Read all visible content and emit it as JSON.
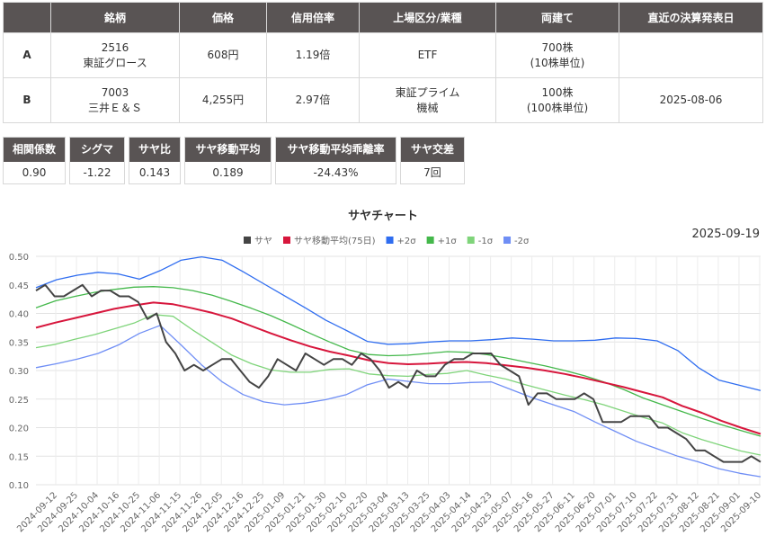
{
  "info_table": {
    "headers": [
      "",
      "銘柄",
      "価格",
      "信用倍率",
      "上場区分/業種",
      "両建て",
      "直近の決算発表日"
    ],
    "rows": [
      {
        "label": "A",
        "code": "2516",
        "name": "東証グロース",
        "price": "608円",
        "margin_ratio": "1.19倍",
        "market": "ETF",
        "sector": "",
        "lot": "700株",
        "lot_unit": "(10株単位)",
        "earnings_date": ""
      },
      {
        "label": "B",
        "code": "7003",
        "name": "三井Ｅ＆Ｓ",
        "price": "4,255円",
        "margin_ratio": "2.97倍",
        "market": "東証プライム",
        "sector": "機械",
        "lot": "100株",
        "lot_unit": "(100株単位)",
        "earnings_date": "2025-08-06"
      }
    ]
  },
  "stats": [
    {
      "label": "相関係数",
      "value": "0.90"
    },
    {
      "label": "シグマ",
      "value": "-1.22"
    },
    {
      "label": "サヤ比",
      "value": "0.143"
    },
    {
      "label": "サヤ移動平均",
      "value": "0.189"
    },
    {
      "label": "サヤ移動平均乖離率",
      "value": "-24.43%"
    },
    {
      "label": "サヤ交差",
      "value": "7回"
    }
  ],
  "chart_data": {
    "type": "line",
    "title": "サヤチャート",
    "date": "2025-09-19",
    "ylim": [
      0.1,
      0.5
    ],
    "yticks": [
      "0.50",
      "0.45",
      "0.40",
      "0.35",
      "0.30",
      "0.25",
      "0.20",
      "0.15",
      "0.10"
    ],
    "grid": true,
    "legend_position": "top",
    "x_tick_labels": [
      "2024-09-12",
      "2024-09-25",
      "2024-10-04",
      "2024-10-16",
      "2024-10-25",
      "2024-11-06",
      "2024-11-15",
      "2024-11-26",
      "2024-12-05",
      "2024-12-16",
      "2024-12-25",
      "2025-01-09",
      "2025-01-21",
      "2025-01-30",
      "2025-02-10",
      "2025-02-20",
      "2025-03-04",
      "2025-03-13",
      "2025-03-25",
      "2025-04-03",
      "2025-04-14",
      "2025-04-23",
      "2025-05-07",
      "2025-05-16",
      "2025-05-27",
      "2025-06-11",
      "2025-06-20",
      "2025-07-01",
      "2025-07-10",
      "2025-07-22",
      "2025-07-31",
      "2025-08-12",
      "2025-08-21",
      "2025-09-01",
      "2025-09-10"
    ],
    "series": [
      {
        "name": "サヤ",
        "color": "#444444",
        "values": [
          0.44,
          0.45,
          0.43,
          0.43,
          0.44,
          0.45,
          0.43,
          0.44,
          0.44,
          0.43,
          0.43,
          0.42,
          0.39,
          0.4,
          0.35,
          0.33,
          0.3,
          0.31,
          0.3,
          0.31,
          0.32,
          0.32,
          0.3,
          0.28,
          0.27,
          0.29,
          0.32,
          0.31,
          0.3,
          0.33,
          0.32,
          0.31,
          0.32,
          0.32,
          0.31,
          0.33,
          0.32,
          0.3,
          0.27,
          0.28,
          0.27,
          0.3,
          0.29,
          0.29,
          0.31,
          0.32,
          0.32,
          0.33,
          0.33,
          0.33,
          0.31,
          0.3,
          0.29,
          0.24,
          0.26,
          0.26,
          0.25,
          0.25,
          0.25,
          0.26,
          0.25,
          0.21,
          0.21,
          0.21,
          0.22,
          0.22,
          0.22,
          0.2,
          0.2,
          0.19,
          0.18,
          0.16,
          0.16,
          0.15,
          0.14,
          0.14,
          0.14,
          0.15,
          0.14
        ]
      },
      {
        "name": "サヤ移動平均(75日)",
        "color": "#d7163c",
        "values": [
          0.375,
          0.384,
          0.392,
          0.4,
          0.408,
          0.414,
          0.419,
          0.416,
          0.409,
          0.401,
          0.391,
          0.378,
          0.365,
          0.353,
          0.342,
          0.333,
          0.326,
          0.318,
          0.313,
          0.311,
          0.312,
          0.314,
          0.315,
          0.313,
          0.309,
          0.305,
          0.3,
          0.294,
          0.287,
          0.279,
          0.271,
          0.262,
          0.253,
          0.238,
          0.226,
          0.212,
          0.2,
          0.189
        ]
      },
      {
        "name": "+2σ",
        "color": "#2f6df0",
        "values": [
          0.445,
          0.459,
          0.467,
          0.472,
          0.469,
          0.46,
          0.475,
          0.493,
          0.499,
          0.493,
          0.473,
          0.452,
          0.431,
          0.41,
          0.388,
          0.37,
          0.351,
          0.346,
          0.347,
          0.35,
          0.352,
          0.352,
          0.354,
          0.357,
          0.355,
          0.352,
          0.352,
          0.353,
          0.357,
          0.356,
          0.352,
          0.335,
          0.305,
          0.283,
          0.274,
          0.265
        ]
      },
      {
        "name": "+1σ",
        "color": "#44b84b",
        "values": [
          0.41,
          0.422,
          0.43,
          0.437,
          0.442,
          0.446,
          0.447,
          0.445,
          0.44,
          0.432,
          0.421,
          0.409,
          0.396,
          0.381,
          0.365,
          0.35,
          0.336,
          0.328,
          0.326,
          0.327,
          0.33,
          0.333,
          0.332,
          0.328,
          0.322,
          0.315,
          0.308,
          0.3,
          0.291,
          0.28,
          0.267,
          0.252,
          0.24,
          0.228,
          0.216,
          0.205,
          0.195,
          0.185
        ]
      },
      {
        "name": "-1σ",
        "color": "#7fd47a",
        "values": [
          0.34,
          0.346,
          0.355,
          0.363,
          0.373,
          0.383,
          0.398,
          0.395,
          0.371,
          0.349,
          0.327,
          0.312,
          0.301,
          0.297,
          0.297,
          0.302,
          0.303,
          0.294,
          0.291,
          0.29,
          0.293,
          0.295,
          0.3,
          0.292,
          0.285,
          0.275,
          0.266,
          0.257,
          0.249,
          0.24,
          0.229,
          0.218,
          0.208,
          0.191,
          0.179,
          0.169,
          0.159,
          0.152
        ]
      },
      {
        "name": "-2σ",
        "color": "#6f8ef5",
        "values": [
          0.305,
          0.312,
          0.32,
          0.33,
          0.345,
          0.365,
          0.379,
          0.345,
          0.31,
          0.28,
          0.258,
          0.245,
          0.24,
          0.243,
          0.249,
          0.258,
          0.275,
          0.285,
          0.281,
          0.277,
          0.277,
          0.279,
          0.28,
          0.266,
          0.252,
          0.24,
          0.228,
          0.21,
          0.193,
          0.176,
          0.163,
          0.15,
          0.14,
          0.128,
          0.12,
          0.114
        ]
      }
    ]
  }
}
